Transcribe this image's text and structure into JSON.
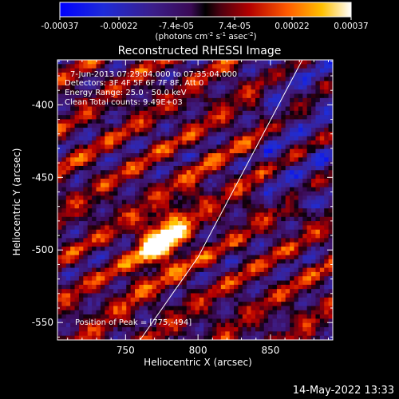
{
  "chart_data": {
    "type": "heatmap",
    "title": "Reconstructed RHESSI Image",
    "xlabel": "Heliocentric X (arcsec)",
    "ylabel": "Heliocentric Y (arcsec)",
    "xlim": [
      703,
      893
    ],
    "ylim": [
      -562,
      -369
    ],
    "x_ticks": [
      750,
      800,
      850
    ],
    "x_tick_labels": [
      "750",
      "800",
      "850"
    ],
    "y_ticks": [
      -400,
      -450,
      -500,
      -550
    ],
    "y_tick_labels": [
      "-400",
      "-450",
      "-500",
      "-550"
    ],
    "colorbar": {
      "range": [
        -0.00037,
        0.00037
      ],
      "ticks": [
        -0.00037,
        -0.00022,
        -7.4e-05,
        7.4e-05,
        0.00022,
        0.00037
      ],
      "tick_labels": [
        "-0.00037",
        "-0.00022",
        "-7.4e-05",
        "7.4e-05",
        "0.00022",
        "0.00037"
      ],
      "units_text": "(photons cm",
      "units_sup1": "-2",
      "units_mid": " s",
      "units_sup2": "-1",
      "units_end": " asec",
      "units_sup3": "-2",
      "units_close": ")"
    },
    "annotations": [
      "7-Jun-2013 07:29:04.000 to 07:35:04.000",
      "Detectors: 3F 4F 5F 6F 7F 8F, Att 0",
      "Energy Range: 25.0 - 50.0 keV",
      "Clean    Total counts: 9.49E+03"
    ],
    "peak_label": "Position of Peak = [775,-494]",
    "peak": [
      775,
      -494
    ],
    "limb": [
      [
        760,
        -562
      ],
      [
        800,
        -505
      ],
      [
        872,
        -369
      ]
    ],
    "colors": {
      "limb": "#ffffff",
      "axes": "#ffffff"
    }
  },
  "footer": {
    "timestamp": "14-May-2022 13:33"
  }
}
